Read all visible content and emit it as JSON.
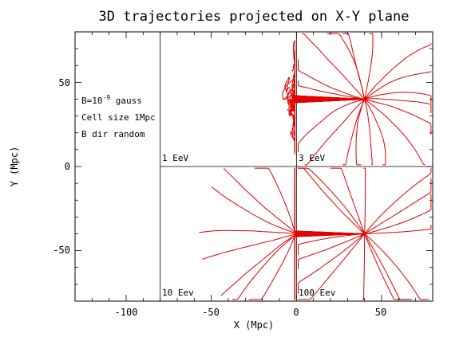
{
  "chart_data": {
    "type": "line",
    "title": "3D trajectories projected on X-Y plane",
    "xlabel": "X (Mpc)",
    "ylabel": "Y (Mpc)",
    "xlim": [
      -130,
      80
    ],
    "ylim": [
      -80,
      80
    ],
    "x_ticks": [
      "-100",
      "-50",
      "0",
      "50"
    ],
    "y_ticks": [
      "50",
      "0",
      "-50"
    ],
    "annotations": {
      "b_field_prefix": "B=10",
      "b_field_exp": "-9",
      "b_field_suffix": " gauss",
      "cell_size": "Cell size 1Mpc",
      "b_dir": "B dir random"
    },
    "series_color": "#e00000",
    "panels": [
      {
        "label": "1 EeV",
        "source": [
          40,
          40
        ],
        "style": "diffusive",
        "n_trajectories": 30
      },
      {
        "label": "3 EeV",
        "source": [
          40,
          40
        ],
        "style": "curved",
        "n_trajectories": 18
      },
      {
        "label": "10 Eev",
        "source": [
          40,
          -40
        ],
        "style": "mild",
        "n_trajectories": 18
      },
      {
        "label": "100 Eev",
        "source": [
          40,
          -40
        ],
        "style": "straight",
        "n_trajectories": 16
      }
    ]
  }
}
